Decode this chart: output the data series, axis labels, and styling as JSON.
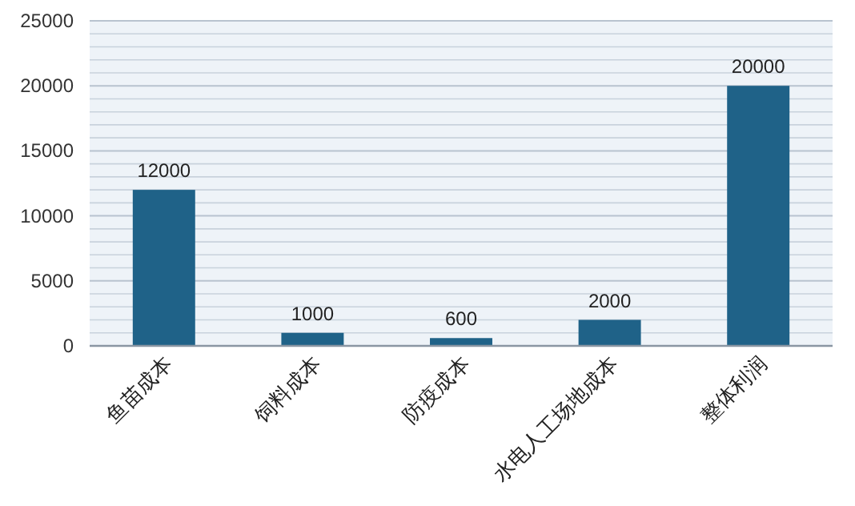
{
  "chart_data": {
    "type": "bar",
    "categories": [
      "鱼苗成本",
      "饲料成本",
      "防疫成本",
      "水电人工场地成本",
      "整体利润"
    ],
    "values": [
      12000,
      1000,
      600,
      2000,
      20000
    ],
    "color": "#1f6288",
    "ylim": [
      0,
      25000
    ],
    "yticks": [
      0,
      5000,
      10000,
      15000,
      20000,
      25000
    ],
    "grid": "y",
    "data_labels": true
  }
}
